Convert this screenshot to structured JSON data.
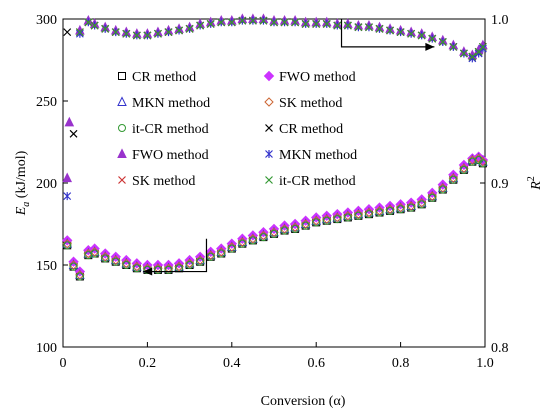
{
  "chart_data": {
    "type": "scatter",
    "title": "",
    "xlabel": "Conversion (α)",
    "ylabel_left": {
      "main": "E",
      "sub": "a",
      "unit": " (kJ/mol)"
    },
    "ylabel_right": {
      "main": "R",
      "sup": "2"
    },
    "xlim": [
      0,
      1.0
    ],
    "ylim_left": [
      100,
      300
    ],
    "ylim_right": [
      0.8,
      1.0
    ],
    "x_ticks": [
      "0",
      "0.2",
      "0.4",
      "0.6",
      "0.8",
      "1.0"
    ],
    "y_left_ticks": [
      "100",
      "150",
      "200",
      "250",
      "300"
    ],
    "y_right_ticks": [
      "0.8",
      "0.9",
      "1.0"
    ],
    "grid": false,
    "legend_position": "upper-center",
    "colors": {
      "cr": "#000000",
      "fwo": "#cc33ff",
      "mkn": "#3333cc",
      "sk": "#cc6633",
      "itcr": "#339933",
      "fwo_r2": "#9933cc",
      "mkn_r2": "#3333cc",
      "sk_r2": "#cc3333",
      "itcr_r2": "#339933",
      "arrow": "#000000"
    },
    "legend": [
      {
        "label": "CR method",
        "marker": "square-open",
        "color_key": "cr"
      },
      {
        "label": "FWO method",
        "marker": "diamond-filled",
        "color_key": "fwo"
      },
      {
        "label": "MKN method",
        "marker": "triangle-open",
        "color_key": "mkn"
      },
      {
        "label": "SK method",
        "marker": "diamond-open",
        "color_key": "sk"
      },
      {
        "label": "it-CR method",
        "marker": "circle-open",
        "color_key": "itcr"
      },
      {
        "label": "CR method",
        "marker": "x",
        "color_key": "cr"
      },
      {
        "label": "FWO method",
        "marker": "triangle-filled",
        "color_key": "fwo_r2"
      },
      {
        "label": "MKN method",
        "marker": "star",
        "color_key": "mkn_r2"
      },
      {
        "label": "SK method",
        "marker": "x",
        "color_key": "sk_r2"
      },
      {
        "label": "it-CR method",
        "marker": "x",
        "color_key": "itcr_r2"
      }
    ],
    "ea_series": [
      {
        "name": "CR method",
        "axis": "left",
        "marker": "square-open",
        "color_key": "cr",
        "x": [
          0.01,
          0.025,
          0.04,
          0.06,
          0.075,
          0.1,
          0.125,
          0.15,
          0.175,
          0.2,
          0.225,
          0.25,
          0.275,
          0.3,
          0.325,
          0.35,
          0.375,
          0.4,
          0.425,
          0.45,
          0.475,
          0.5,
          0.525,
          0.55,
          0.575,
          0.6,
          0.625,
          0.65,
          0.675,
          0.7,
          0.725,
          0.75,
          0.775,
          0.8,
          0.825,
          0.85,
          0.875,
          0.9,
          0.925,
          0.95,
          0.97,
          0.985,
          0.995
        ],
        "y": [
          162,
          149,
          143,
          156,
          157,
          154,
          152,
          150,
          148,
          147,
          147,
          147,
          148,
          150,
          152,
          155,
          157,
          160,
          163,
          165,
          167,
          169,
          171,
          172,
          174,
          176,
          177,
          178,
          179,
          180,
          181,
          182,
          183,
          184,
          185,
          187,
          191,
          196,
          202,
          208,
          213,
          214,
          212
        ]
      },
      {
        "name": "FWO method",
        "axis": "left",
        "marker": "diamond-filled",
        "color_key": "fwo",
        "x": [
          0.01,
          0.025,
          0.04,
          0.06,
          0.075,
          0.1,
          0.125,
          0.15,
          0.175,
          0.2,
          0.225,
          0.25,
          0.275,
          0.3,
          0.325,
          0.35,
          0.375,
          0.4,
          0.425,
          0.45,
          0.475,
          0.5,
          0.525,
          0.55,
          0.575,
          0.6,
          0.625,
          0.65,
          0.675,
          0.7,
          0.725,
          0.75,
          0.775,
          0.8,
          0.825,
          0.85,
          0.875,
          0.9,
          0.925,
          0.95,
          0.97,
          0.985,
          0.995
        ],
        "y": [
          165,
          152,
          146,
          159,
          160,
          157,
          155,
          153,
          151,
          150,
          150,
          150,
          151,
          153,
          155,
          158,
          160,
          163,
          166,
          168,
          170,
          172,
          174,
          175,
          177,
          179,
          180,
          181,
          182,
          183,
          184,
          185,
          186,
          187,
          188,
          190,
          194,
          199,
          205,
          211,
          215,
          216,
          214
        ]
      },
      {
        "name": "MKN method",
        "axis": "left",
        "marker": "triangle-open",
        "color_key": "mkn",
        "x": [
          0.01,
          0.025,
          0.04,
          0.06,
          0.075,
          0.1,
          0.125,
          0.15,
          0.175,
          0.2,
          0.225,
          0.25,
          0.275,
          0.3,
          0.325,
          0.35,
          0.375,
          0.4,
          0.425,
          0.45,
          0.475,
          0.5,
          0.525,
          0.55,
          0.575,
          0.6,
          0.625,
          0.65,
          0.675,
          0.7,
          0.725,
          0.75,
          0.775,
          0.8,
          0.825,
          0.85,
          0.875,
          0.9,
          0.925,
          0.95,
          0.97,
          0.985,
          0.995
        ],
        "y": [
          163,
          150,
          144,
          157,
          158,
          155,
          153,
          151,
          149,
          148,
          148,
          148,
          149,
          151,
          153,
          156,
          158,
          161,
          164,
          166,
          168,
          170,
          172,
          173,
          175,
          177,
          178,
          179,
          180,
          181,
          182,
          183,
          184,
          185,
          186,
          188,
          192,
          197,
          203,
          209,
          214,
          215,
          213
        ]
      },
      {
        "name": "SK method",
        "axis": "left",
        "marker": "diamond-open",
        "color_key": "sk",
        "x": [
          0.01,
          0.025,
          0.04,
          0.06,
          0.075,
          0.1,
          0.125,
          0.15,
          0.175,
          0.2,
          0.225,
          0.25,
          0.275,
          0.3,
          0.325,
          0.35,
          0.375,
          0.4,
          0.425,
          0.45,
          0.475,
          0.5,
          0.525,
          0.55,
          0.575,
          0.6,
          0.625,
          0.65,
          0.675,
          0.7,
          0.725,
          0.75,
          0.775,
          0.8,
          0.825,
          0.85,
          0.875,
          0.9,
          0.925,
          0.95,
          0.97,
          0.985,
          0.995
        ],
        "y": [
          163,
          150,
          144,
          157,
          158,
          155,
          153,
          151,
          149,
          148,
          148,
          148,
          149,
          151,
          153,
          156,
          158,
          161,
          164,
          166,
          168,
          170,
          172,
          173,
          175,
          177,
          178,
          179,
          180,
          181,
          182,
          183,
          184,
          185,
          186,
          188,
          192,
          197,
          203,
          209,
          214,
          215,
          213
        ]
      },
      {
        "name": "it-CR method",
        "axis": "left",
        "marker": "circle-open",
        "color_key": "itcr",
        "x": [
          0.01,
          0.025,
          0.04,
          0.06,
          0.075,
          0.1,
          0.125,
          0.15,
          0.175,
          0.2,
          0.225,
          0.25,
          0.275,
          0.3,
          0.325,
          0.35,
          0.375,
          0.4,
          0.425,
          0.45,
          0.475,
          0.5,
          0.525,
          0.55,
          0.575,
          0.6,
          0.625,
          0.65,
          0.675,
          0.7,
          0.725,
          0.75,
          0.775,
          0.8,
          0.825,
          0.85,
          0.875,
          0.9,
          0.925,
          0.95,
          0.97,
          0.985,
          0.995
        ],
        "y": [
          162,
          149,
          143,
          156,
          157,
          154,
          152,
          150,
          148,
          147,
          147,
          147,
          148,
          150,
          152,
          155,
          157,
          160,
          163,
          165,
          167,
          169,
          171,
          172,
          174,
          176,
          177,
          178,
          179,
          180,
          181,
          182,
          183,
          184,
          185,
          187,
          191,
          196,
          202,
          208,
          213,
          214,
          212
        ]
      }
    ],
    "r2_series": [
      {
        "name": "CR method",
        "axis": "right",
        "marker": "x",
        "color_key": "cr",
        "x": [
          0.01,
          0.025,
          0.04,
          0.06,
          0.075,
          0.1,
          0.125,
          0.15,
          0.175,
          0.2,
          0.225,
          0.25,
          0.275,
          0.3,
          0.325,
          0.35,
          0.375,
          0.4,
          0.425,
          0.45,
          0.475,
          0.5,
          0.525,
          0.55,
          0.575,
          0.6,
          0.625,
          0.65,
          0.675,
          0.7,
          0.725,
          0.75,
          0.775,
          0.8,
          0.825,
          0.85,
          0.875,
          0.9,
          0.925,
          0.95,
          0.97,
          0.985,
          0.995
        ],
        "y": [
          0.992,
          0.93,
          0.992,
          0.998,
          0.996,
          0.994,
          0.992,
          0.991,
          0.99,
          0.99,
          0.991,
          0.992,
          0.993,
          0.994,
          0.996,
          0.997,
          0.998,
          0.998,
          0.999,
          0.999,
          0.999,
          0.998,
          0.998,
          0.998,
          0.997,
          0.997,
          0.997,
          0.996,
          0.996,
          0.995,
          0.995,
          0.994,
          0.993,
          0.992,
          0.991,
          0.99,
          0.988,
          0.986,
          0.983,
          0.979,
          0.977,
          0.98,
          0.983
        ]
      },
      {
        "name": "FWO method",
        "axis": "right",
        "marker": "triangle-filled",
        "color_key": "fwo_r2",
        "x": [
          0.01,
          0.015,
          0.04,
          0.06,
          0.075,
          0.1,
          0.125,
          0.15,
          0.175,
          0.2,
          0.225,
          0.25,
          0.275,
          0.3,
          0.325,
          0.35,
          0.375,
          0.4,
          0.425,
          0.45,
          0.475,
          0.5,
          0.525,
          0.55,
          0.575,
          0.6,
          0.625,
          0.65,
          0.675,
          0.7,
          0.725,
          0.75,
          0.775,
          0.8,
          0.825,
          0.85,
          0.875,
          0.9,
          0.925,
          0.95,
          0.97,
          0.985,
          0.995
        ],
        "y": [
          0.903,
          0.937,
          0.993,
          0.999,
          0.997,
          0.995,
          0.993,
          0.992,
          0.991,
          0.991,
          0.992,
          0.993,
          0.994,
          0.995,
          0.997,
          0.998,
          0.999,
          0.999,
          1.0,
          1.0,
          1.0,
          0.999,
          0.999,
          0.999,
          0.998,
          0.998,
          0.998,
          0.997,
          0.997,
          0.996,
          0.996,
          0.995,
          0.994,
          0.993,
          0.992,
          0.991,
          0.989,
          0.987,
          0.984,
          0.98,
          0.978,
          0.981,
          0.984
        ]
      },
      {
        "name": "MKN method",
        "axis": "right",
        "marker": "star",
        "color_key": "mkn_r2",
        "x": [
          0.01,
          0.04,
          0.06,
          0.075,
          0.1,
          0.125,
          0.15,
          0.175,
          0.2,
          0.225,
          0.25,
          0.275,
          0.3,
          0.325,
          0.35,
          0.375,
          0.4,
          0.425,
          0.45,
          0.475,
          0.5,
          0.525,
          0.55,
          0.575,
          0.6,
          0.625,
          0.65,
          0.675,
          0.7,
          0.725,
          0.75,
          0.775,
          0.8,
          0.825,
          0.85,
          0.875,
          0.9,
          0.925,
          0.95,
          0.97,
          0.985,
          0.995
        ],
        "y": [
          0.892,
          0.991,
          0.998,
          0.996,
          0.994,
          0.992,
          0.991,
          0.99,
          0.99,
          0.991,
          0.992,
          0.993,
          0.994,
          0.996,
          0.997,
          0.998,
          0.998,
          0.999,
          0.999,
          0.999,
          0.998,
          0.998,
          0.998,
          0.997,
          0.997,
          0.997,
          0.996,
          0.996,
          0.995,
          0.995,
          0.994,
          0.993,
          0.992,
          0.991,
          0.99,
          0.988,
          0.986,
          0.983,
          0.979,
          0.976,
          0.979,
          0.982
        ]
      },
      {
        "name": "SK method",
        "axis": "right",
        "marker": "x",
        "color_key": "sk_r2",
        "x": [
          0.04,
          0.06,
          0.075,
          0.1,
          0.125,
          0.15,
          0.175,
          0.2,
          0.225,
          0.25,
          0.275,
          0.3,
          0.325,
          0.35,
          0.375,
          0.4,
          0.425,
          0.45,
          0.475,
          0.5,
          0.525,
          0.55,
          0.575,
          0.6,
          0.625,
          0.65,
          0.675,
          0.7,
          0.725,
          0.75,
          0.775,
          0.8,
          0.825,
          0.85,
          0.875,
          0.9,
          0.925,
          0.95,
          0.97,
          0.985,
          0.995
        ],
        "y": [
          0.992,
          0.998,
          0.996,
          0.994,
          0.992,
          0.991,
          0.99,
          0.99,
          0.991,
          0.992,
          0.993,
          0.994,
          0.996,
          0.997,
          0.998,
          0.998,
          0.999,
          0.999,
          0.999,
          0.998,
          0.998,
          0.998,
          0.997,
          0.997,
          0.997,
          0.996,
          0.996,
          0.995,
          0.995,
          0.994,
          0.993,
          0.992,
          0.991,
          0.99,
          0.988,
          0.986,
          0.983,
          0.979,
          0.977,
          0.98,
          0.983
        ]
      },
      {
        "name": "it-CR method",
        "axis": "right",
        "marker": "x",
        "color_key": "itcr_r2",
        "x": [
          0.04,
          0.06,
          0.075,
          0.1,
          0.125,
          0.15,
          0.175,
          0.2,
          0.225,
          0.25,
          0.275,
          0.3,
          0.325,
          0.35,
          0.375,
          0.4,
          0.425,
          0.45,
          0.475,
          0.5,
          0.525,
          0.55,
          0.575,
          0.6,
          0.625,
          0.65,
          0.675,
          0.7,
          0.725,
          0.75,
          0.775,
          0.8,
          0.825,
          0.85,
          0.875,
          0.9,
          0.925,
          0.95,
          0.97,
          0.985,
          0.995
        ],
        "y": [
          0.992,
          0.998,
          0.996,
          0.994,
          0.992,
          0.991,
          0.99,
          0.99,
          0.991,
          0.992,
          0.993,
          0.994,
          0.996,
          0.997,
          0.998,
          0.998,
          0.999,
          0.999,
          0.999,
          0.998,
          0.998,
          0.998,
          0.997,
          0.997,
          0.997,
          0.996,
          0.996,
          0.995,
          0.995,
          0.994,
          0.993,
          0.992,
          0.991,
          0.99,
          0.988,
          0.986,
          0.983,
          0.979,
          0.977,
          0.98,
          0.983
        ]
      }
    ],
    "arrows": [
      {
        "name": "ea-axis-arrow",
        "axis": "left",
        "path": [
          [
            0.34,
            166
          ],
          [
            0.34,
            146
          ],
          [
            0.19,
            146
          ]
        ]
      },
      {
        "name": "r2-axis-arrow",
        "axis": "right",
        "path": [
          [
            0.66,
            1.0
          ],
          [
            0.66,
            0.983
          ],
          [
            0.88,
            0.983
          ]
        ]
      }
    ]
  }
}
